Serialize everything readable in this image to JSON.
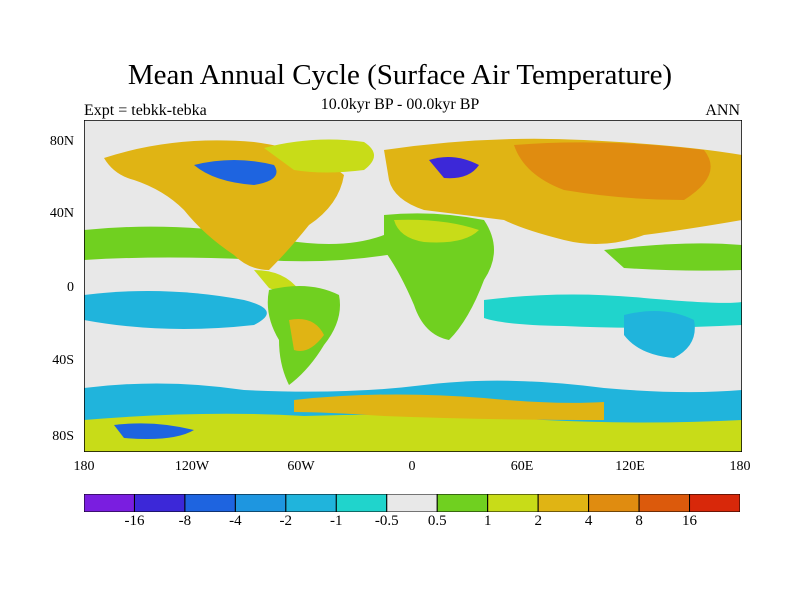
{
  "title": "Mean Annual Cycle (Surface Air Temperature)",
  "subtitle": "10.0kyr BP - 00.0kyr BP",
  "left_label": "Expt = tebkk-tebka",
  "right_label": "ANN",
  "y_ticks": [
    "80N",
    "40N",
    "0",
    "40S",
    "80S"
  ],
  "x_ticks": [
    "180",
    "120W",
    "60W",
    "0",
    "60E",
    "120E",
    "180"
  ],
  "colorbar": {
    "labels": [
      "-16",
      "-8",
      "-4",
      "-2",
      "-1",
      "-0.5",
      "0.5",
      "1",
      "2",
      "4",
      "8",
      "16"
    ],
    "colors": [
      "#7a1ee0",
      "#3c28d8",
      "#1e64e0",
      "#1e96e0",
      "#20b4dc",
      "#20d4cc",
      "#e8e8e8",
      "#70d020",
      "#c8dc18",
      "#e0b414",
      "#e08c10",
      "#dc5a0c",
      "#d8280a"
    ]
  },
  "map": {
    "lat_range": [
      -90,
      90
    ],
    "lon_range": [
      -180,
      180
    ],
    "land_color": "#e0b414",
    "ocean_color": "#e8e8e8"
  }
}
